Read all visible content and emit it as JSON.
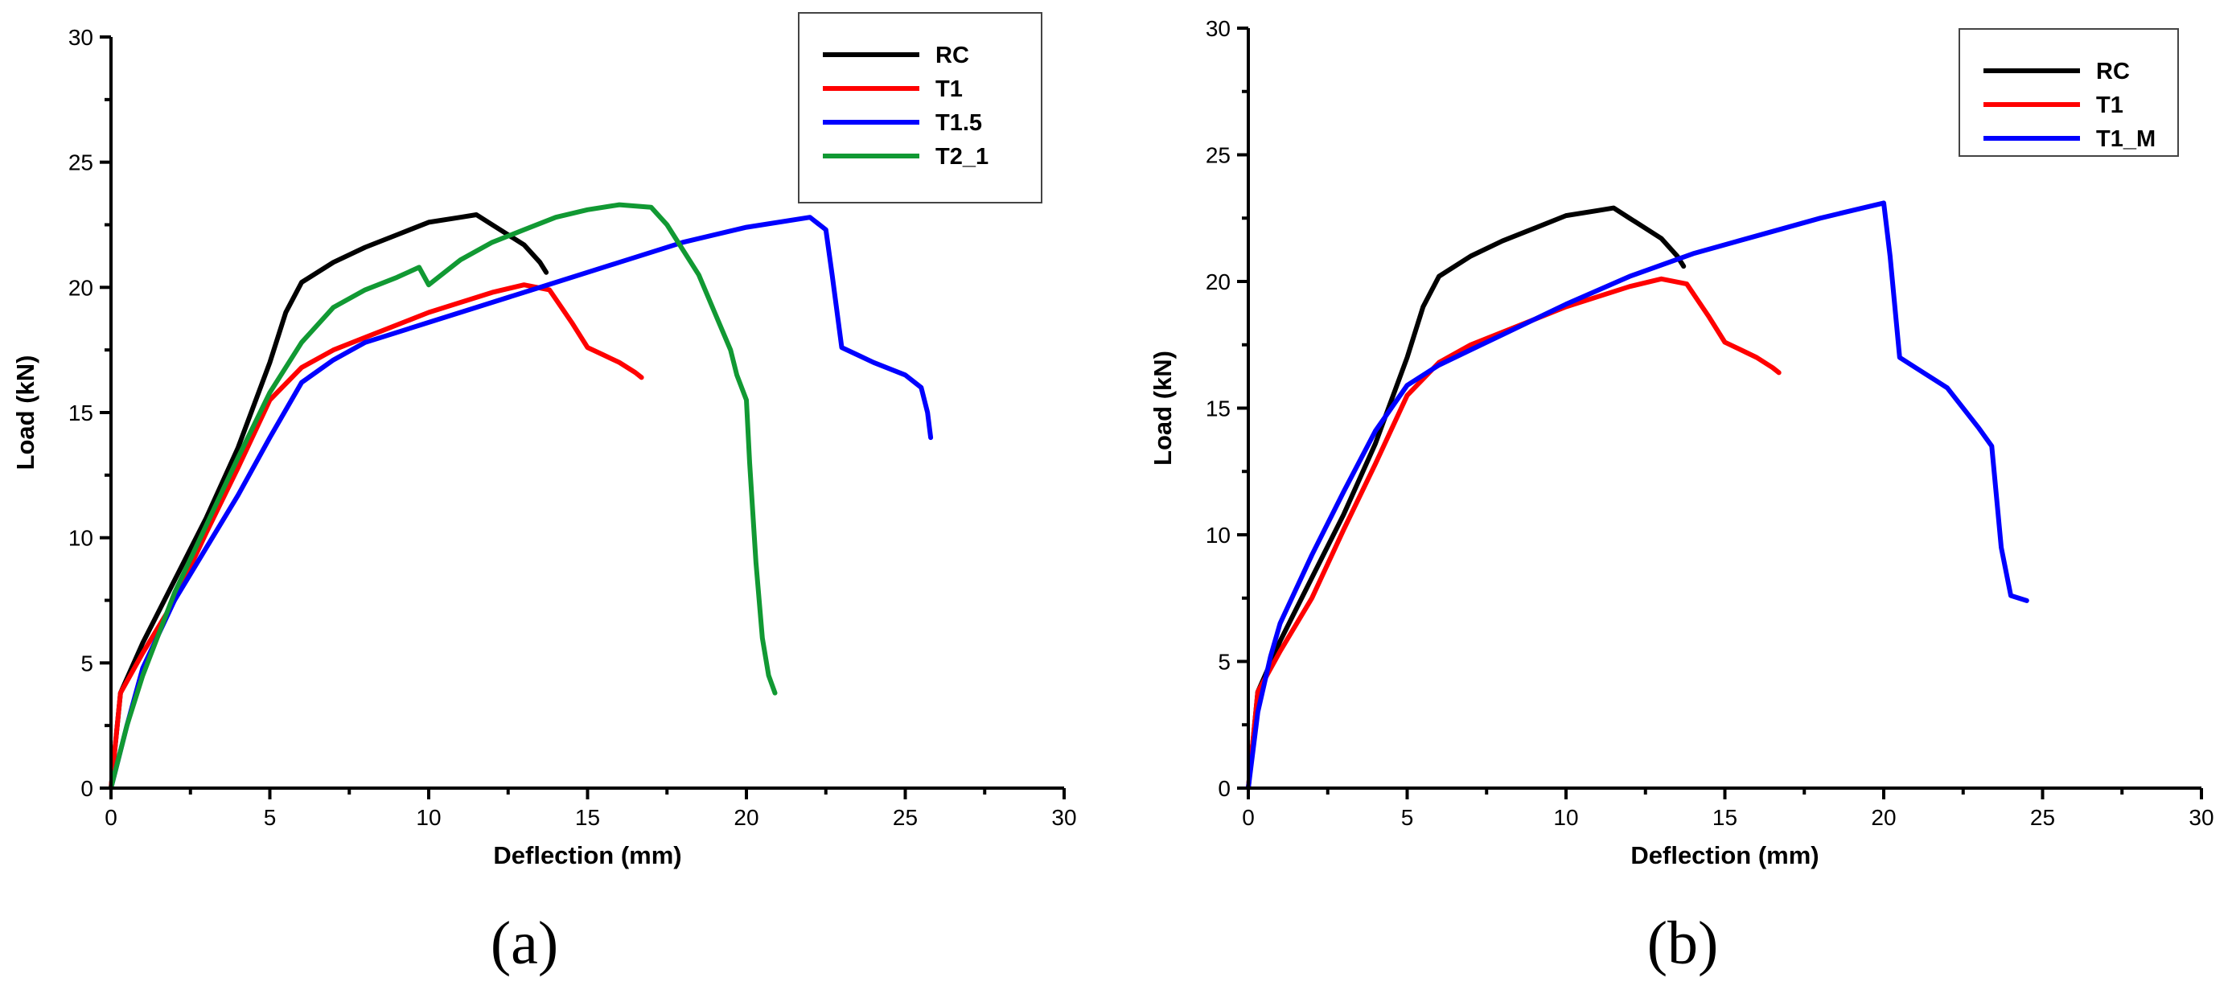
{
  "chart_data": [
    {
      "type": "line",
      "panel_label": "(a)",
      "xlabel": "Deflection (mm)",
      "ylabel": "Load (kN)",
      "xlim": [
        0,
        30
      ],
      "ylim": [
        0,
        30
      ],
      "xticks": [
        0,
        5,
        10,
        15,
        20,
        25,
        30
      ],
      "yticks": [
        0,
        5,
        10,
        15,
        20,
        25,
        30
      ],
      "grid": false,
      "legend_position": "top-right",
      "series": [
        {
          "name": "RC",
          "color": "#000000",
          "x": [
            0,
            0.3,
            1,
            2,
            3,
            4,
            5,
            5.5,
            6,
            7,
            8,
            9,
            10,
            11,
            11.5,
            12,
            12.5,
            13,
            13.5,
            13.7
          ],
          "y": [
            0,
            3.8,
            5.8,
            8.3,
            10.8,
            13.6,
            17,
            19,
            20.2,
            21,
            21.6,
            22.1,
            22.6,
            22.8,
            22.9,
            22.5,
            22.1,
            21.7,
            21.0,
            20.6
          ]
        },
        {
          "name": "T1",
          "color": "#ff0000",
          "x": [
            0,
            0.3,
            1,
            2,
            3,
            4,
            5,
            6,
            7,
            8,
            10,
            12,
            13,
            13.8,
            14.5,
            15,
            15.5,
            16,
            16.5,
            16.7
          ],
          "y": [
            0,
            3.8,
            5.4,
            7.5,
            10.2,
            12.8,
            15.5,
            16.8,
            17.5,
            18,
            19,
            19.8,
            20.1,
            19.9,
            18.6,
            17.6,
            17.3,
            17,
            16.6,
            16.4
          ]
        },
        {
          "name": "T1.5",
          "color": "#0000ff",
          "x": [
            0,
            0.5,
            1,
            2,
            3,
            4,
            5,
            6,
            7,
            8,
            10,
            12,
            14,
            16,
            18,
            20,
            22,
            22.5,
            22.7,
            23,
            23.5,
            24,
            25,
            25.5,
            25.7,
            25.8
          ],
          "y": [
            0,
            2.5,
            4.8,
            7.5,
            9.6,
            11.7,
            14,
            16.2,
            17.1,
            17.8,
            18.6,
            19.4,
            20.2,
            21,
            21.8,
            22.4,
            22.8,
            22.3,
            20.5,
            17.6,
            17.3,
            17,
            16.5,
            16,
            15,
            14
          ]
        },
        {
          "name": "T2_1",
          "color": "#119933",
          "x": [
            0,
            0.5,
            1,
            2,
            3,
            4,
            5,
            6,
            7,
            8,
            9,
            9.7,
            10,
            11,
            12,
            13,
            14,
            15,
            16,
            17,
            17.5,
            18,
            18.5,
            19,
            19.5,
            19.7,
            20,
            20.1,
            20.3,
            20.5,
            20.7,
            20.9
          ],
          "y": [
            0,
            2.5,
            4.5,
            7.8,
            10.5,
            13.2,
            15.8,
            17.8,
            19.2,
            19.9,
            20.4,
            20.8,
            20.1,
            21.1,
            21.8,
            22.3,
            22.8,
            23.1,
            23.3,
            23.2,
            22.5,
            21.5,
            20.5,
            19,
            17.5,
            16.5,
            15.5,
            13,
            9,
            6,
            4.5,
            3.8
          ]
        }
      ]
    },
    {
      "type": "line",
      "panel_label": "(b)",
      "xlabel": "Deflection (mm)",
      "ylabel": "Load (kN)",
      "xlim": [
        0,
        30
      ],
      "ylim": [
        0,
        30
      ],
      "xticks": [
        0,
        5,
        10,
        15,
        20,
        25,
        30
      ],
      "yticks": [
        0,
        5,
        10,
        15,
        20,
        25,
        30
      ],
      "grid": false,
      "legend_position": "top-right",
      "series": [
        {
          "name": "RC",
          "color": "#000000",
          "x": [
            0,
            0.3,
            1,
            2,
            3,
            4,
            5,
            5.5,
            6,
            7,
            8,
            9,
            10,
            11,
            11.5,
            12,
            12.5,
            13,
            13.5,
            13.7
          ],
          "y": [
            0,
            3.8,
            5.8,
            8.3,
            10.8,
            13.6,
            17,
            19,
            20.2,
            21,
            21.6,
            22.1,
            22.6,
            22.8,
            22.9,
            22.5,
            22.1,
            21.7,
            21.0,
            20.6
          ]
        },
        {
          "name": "T1",
          "color": "#ff0000",
          "x": [
            0,
            0.3,
            1,
            2,
            3,
            4,
            5,
            6,
            7,
            8,
            10,
            12,
            13,
            13.8,
            14.5,
            15,
            15.5,
            16,
            16.5,
            16.7
          ],
          "y": [
            0,
            3.8,
            5.4,
            7.5,
            10.2,
            12.8,
            15.5,
            16.8,
            17.5,
            18,
            19,
            19.8,
            20.1,
            19.9,
            18.6,
            17.6,
            17.3,
            17,
            16.6,
            16.4
          ]
        },
        {
          "name": "T1_M",
          "color": "#0000ff",
          "x": [
            0,
            0.3,
            0.7,
            1,
            2,
            3,
            4,
            5,
            6,
            7,
            8,
            10,
            12,
            14,
            16,
            18,
            19,
            20,
            20.2,
            20.5,
            21,
            22,
            23,
            23.4,
            23.7,
            24,
            24.5
          ],
          "y": [
            0,
            3,
            5.2,
            6.5,
            9.2,
            11.7,
            14.1,
            15.9,
            16.7,
            17.3,
            17.9,
            19.1,
            20.2,
            21.1,
            21.8,
            22.5,
            22.8,
            23.1,
            21,
            17,
            16.6,
            15.8,
            14.2,
            13.5,
            9.5,
            7.6,
            7.4
          ]
        }
      ]
    }
  ]
}
